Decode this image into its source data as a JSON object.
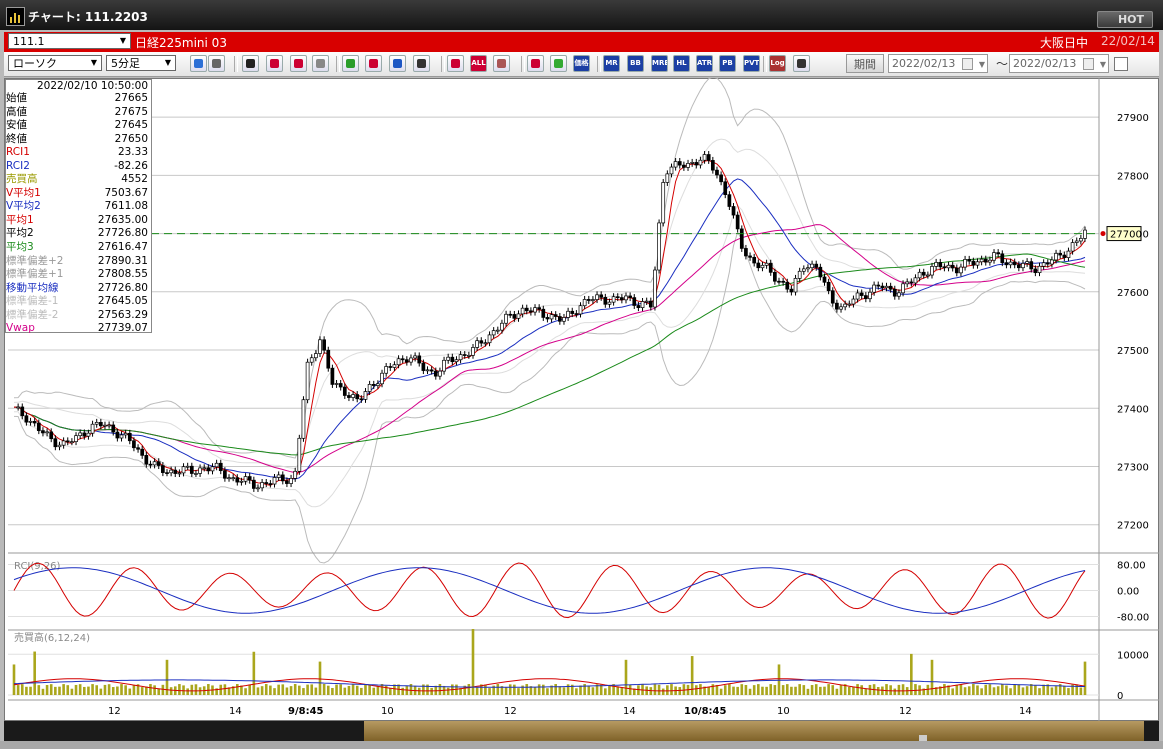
{
  "window": {
    "title": "チャート: 111.2203",
    "hot_label": "HOT"
  },
  "symbol_bar": {
    "symbol_code": "111.1",
    "symbol_name": "日経225mini 03",
    "session": "大阪日中",
    "date": "22/02/14"
  },
  "toolbar": {
    "chart_type": "ローソク",
    "interval": "5分足",
    "period_label": "期間",
    "date_from": "2022/02/13",
    "date_to": "2022/02/13",
    "tilde": "〜",
    "buttons": [
      {
        "name": "zoom-icon",
        "label": "",
        "color": "#2b6fd6"
      },
      {
        "name": "crosshair-icon",
        "label": "",
        "color": "#666"
      },
      {
        "name": "down-arrow-icon",
        "label": "",
        "color": "#222"
      },
      {
        "name": "search-chart-icon",
        "label": "",
        "color": "#c03"
      },
      {
        "name": "compare-icon",
        "label": "",
        "color": "#c03"
      },
      {
        "name": "save-icon",
        "label": "",
        "color": "#888"
      },
      {
        "name": "pencil-icon",
        "label": "",
        "color": "#2a9d2a"
      },
      {
        "name": "cursor-icon",
        "label": "",
        "color": "#c03"
      },
      {
        "name": "undo-icon",
        "label": "",
        "color": "#1c56c4"
      },
      {
        "name": "candle-icon",
        "label": "",
        "color": "#333"
      },
      {
        "name": "candle-pair-icon",
        "label": "",
        "color": "#c03"
      },
      {
        "name": "all-button",
        "label": "ALL",
        "color": "#c03"
      },
      {
        "name": "brush-icon",
        "label": "",
        "color": "#a55"
      },
      {
        "name": "wrench-icon",
        "label": "",
        "color": "#c03"
      },
      {
        "name": "palette-icon",
        "label": "",
        "color": "#3a3"
      },
      {
        "name": "volume-profile-button",
        "label": "価格",
        "color": "#1c3fa4"
      },
      {
        "name": "mr-button",
        "label": "MR",
        "color": "#1c3fa4"
      },
      {
        "name": "bb-button",
        "label": "BB",
        "color": "#1c3fa4"
      },
      {
        "name": "mre-button",
        "label": "MRE",
        "color": "#1c3fa4"
      },
      {
        "name": "hl-button",
        "label": "HL",
        "color": "#1c3fa4"
      },
      {
        "name": "atr-button",
        "label": "ATR",
        "color": "#1c3fa4"
      },
      {
        "name": "pb-button",
        "label": "PB RA",
        "color": "#1c3fa4"
      },
      {
        "name": "pvt-button",
        "label": "PVT",
        "color": "#1c3fa4"
      },
      {
        "name": "log-button",
        "label": "Log",
        "color": "#a33"
      },
      {
        "name": "export-icon",
        "label": "",
        "color": "#333"
      }
    ]
  },
  "info_panel": {
    "timestamp": "2022/02/10  10:50:00",
    "rows": [
      {
        "label": "始値",
        "value": "27665",
        "color": "#000000"
      },
      {
        "label": "高値",
        "value": "27675",
        "color": "#000000"
      },
      {
        "label": "安値",
        "value": "27645",
        "color": "#000000"
      },
      {
        "label": "終値",
        "value": "27650",
        "color": "#000000"
      },
      {
        "label": "RCI1",
        "value": "23.33",
        "color": "#d40000"
      },
      {
        "label": "RCI2",
        "value": "-82.26",
        "color": "#1a2ec0"
      },
      {
        "label": "売買高",
        "value": "4552",
        "color": "#9a9a00"
      },
      {
        "label": "V平均1",
        "value": "7503.67",
        "color": "#d40000"
      },
      {
        "label": "V平均2",
        "value": "7611.08",
        "color": "#1a2ec0"
      },
      {
        "label": "平均1",
        "value": "27635.00",
        "color": "#d40000"
      },
      {
        "label": "平均2",
        "value": "27726.80",
        "color": "#000000"
      },
      {
        "label": "平均3",
        "value": "27616.47",
        "color": "#1a8a1a"
      },
      {
        "label": "標準偏差+2",
        "value": "27890.31",
        "color": "#999999"
      },
      {
        "label": "標準偏差+1",
        "value": "27808.55",
        "color": "#999999"
      },
      {
        "label": "移動平均線",
        "value": "27726.80",
        "color": "#1a2ec0"
      },
      {
        "label": "標準偏差-1",
        "value": "27645.05",
        "color": "#bbbbbb"
      },
      {
        "label": "標準偏差-2",
        "value": "27563.29",
        "color": "#bbbbbb"
      },
      {
        "label": "Vwap",
        "value": "27739.07",
        "color": "#d4008a"
      }
    ]
  },
  "chart_data": [
    {
      "type": "candlestick",
      "y_ticks": [
        "27900",
        "27800",
        "27700",
        "27600",
        "27500",
        "27400",
        "27300",
        "27200"
      ],
      "ylim": [
        27160,
        27950
      ],
      "last_price": "27700",
      "x_labels": [
        "12",
        "14",
        "9/8:45",
        "10",
        "12",
        "14",
        "10/8:45",
        "10",
        "12",
        "14"
      ],
      "close_path": [
        27398,
        27385,
        27362,
        27345,
        27338,
        27350,
        27368,
        27372,
        27360,
        27345,
        27320,
        27300,
        27290,
        27295,
        27290,
        27300,
        27295,
        27280,
        27275,
        27268,
        27272,
        27280,
        27278,
        27470,
        27520,
        27440,
        27430,
        27410,
        27440,
        27460,
        27480,
        27490,
        27470,
        27460,
        27480,
        27490,
        27500,
        27520,
        27540,
        27560,
        27570,
        27565,
        27560,
        27550,
        27570,
        27585,
        27590,
        27585,
        27590,
        27580,
        27575,
        27810,
        27815,
        27820,
        27830,
        27810,
        27760,
        27680,
        27650,
        27640,
        27620,
        27600,
        27650,
        27640,
        27590,
        27570,
        27590,
        27600,
        27610,
        27600,
        27610,
        27630,
        27640,
        27645,
        27640,
        27650,
        27655,
        27660,
        27650,
        27645,
        27640,
        27650,
        27660,
        27680,
        27700
      ]
    },
    {
      "type": "line",
      "title": "RCI(9,26)",
      "y_ticks": [
        "80.00",
        "0.00",
        "-80.00"
      ],
      "ylim": [
        -100,
        100
      ]
    },
    {
      "type": "bar",
      "title": "売買高(6,12,24)",
      "y_ticks": [
        "10000",
        "0"
      ],
      "ylim": [
        0,
        14000
      ]
    }
  ]
}
